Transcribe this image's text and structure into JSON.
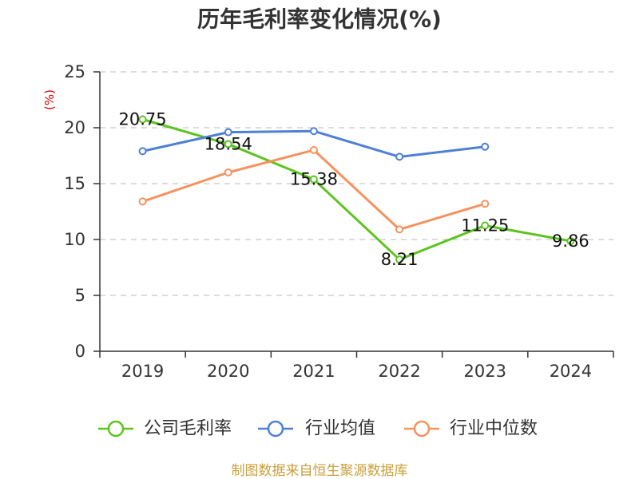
{
  "chart_data": {
    "type": "line",
    "title": "历年毛利率变化情况(%)",
    "ylabel": "(%)",
    "categories": [
      "2019",
      "2020",
      "2021",
      "2022",
      "2023",
      "2024"
    ],
    "ylim": [
      0,
      25
    ],
    "yticks": [
      0,
      5,
      10,
      15,
      20,
      25
    ],
    "grid": true,
    "legend": "bottom",
    "series": [
      {
        "name": "公司毛利率",
        "color": "#5cc41f",
        "show_labels": true,
        "values": [
          20.75,
          18.54,
          15.38,
          8.21,
          11.25,
          9.86
        ]
      },
      {
        "name": "行业均值",
        "color": "#4d80d6",
        "show_labels": false,
        "values": [
          17.9,
          19.6,
          19.7,
          17.4,
          18.3,
          null
        ]
      },
      {
        "name": "行业中位数",
        "color": "#f5925e",
        "show_labels": false,
        "values": [
          13.4,
          16.0,
          18.0,
          10.9,
          13.2,
          null
        ]
      }
    ]
  },
  "footer": {
    "source_note": "制图数据来自恒生聚源数据库"
  }
}
